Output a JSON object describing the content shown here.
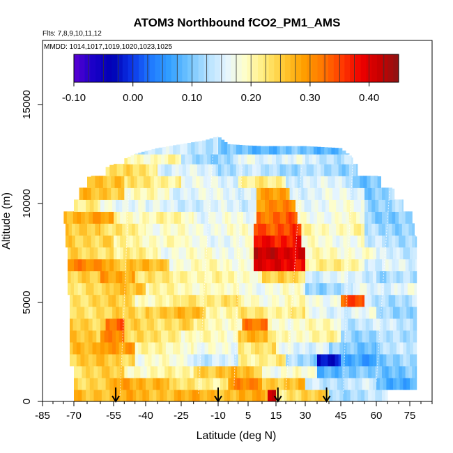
{
  "chart_data": {
    "type": "heatmap",
    "title": "ATOM3 Northbound fCO2_PM1_AMS",
    "flights_label": "Flts: 7,8,9,10,11,12",
    "dates_label": "MMDD: 1014,1017,1019,1020,1023,1025",
    "xlabel": "Latitude (deg N)",
    "ylabel": "Altitude (m)",
    "xlim": [
      -85,
      85
    ],
    "ylim": [
      0,
      17500
    ],
    "x_ticks": [
      -85,
      -70,
      -55,
      -40,
      -25,
      -10,
      5,
      15,
      30,
      45,
      60,
      75
    ],
    "x_tick_labels": [
      "-85",
      "-70",
      "-55",
      "-40",
      "-25",
      "-10",
      "5",
      "15",
      "30",
      "45",
      "60",
      "75"
    ],
    "y_ticks": [
      0,
      5000,
      10000,
      15000
    ],
    "y_tick_labels": [
      "0",
      "5000",
      "10000",
      "15000"
    ],
    "colorbar": {
      "range": [
        -0.1,
        0.45
      ],
      "ticks": [
        -0.1,
        0.0,
        0.1,
        0.2,
        0.3,
        0.4
      ],
      "tick_labels": [
        "-0.10",
        "0.00",
        "0.10",
        "0.20",
        "0.30",
        "0.40"
      ],
      "colors": [
        "#5a00d2",
        "#1a00c8",
        "#0000b4",
        "#0a32e6",
        "#1e78ff",
        "#32a0ff",
        "#6ec3ff",
        "#b4e1ff",
        "#e6f5ff",
        "#ffffc8",
        "#ffeb78",
        "#ffc832",
        "#ffa000",
        "#ff7800",
        "#ff3c00",
        "#f00000",
        "#c80000",
        "#8c1414"
      ]
    },
    "arrow_latitudes": [
      -54,
      -10,
      16,
      39
    ],
    "field": {
      "description_units": "fCO2 fraction",
      "top_profile": [
        [
          -72,
          10300
        ],
        [
          -65,
          11300
        ],
        [
          -55,
          12000
        ],
        [
          -45,
          12500
        ],
        [
          -35,
          12800
        ],
        [
          -25,
          13000
        ],
        [
          -15,
          13200
        ],
        [
          -10,
          13400
        ],
        [
          -5,
          13000
        ],
        [
          10,
          12900
        ],
        [
          30,
          12900
        ],
        [
          45,
          12800
        ],
        [
          50,
          12300
        ],
        [
          60,
          11500
        ],
        [
          70,
          10500
        ],
        [
          76,
          9500
        ],
        [
          79,
          7500
        ],
        [
          80,
          0
        ]
      ],
      "left_profile": [
        [
          -75,
          9500
        ],
        [
          -74,
          8000
        ],
        [
          -73,
          5000
        ],
        [
          -72,
          2000
        ],
        [
          -71,
          600
        ],
        [
          -70,
          0
        ]
      ],
      "layers": [
        {
          "alt": [
            0,
            600
          ],
          "segments": [
            [
              -70,
              12,
              0.27
            ],
            [
              12,
              15,
              0.42
            ],
            [
              15,
              19,
              0.22
            ],
            [
              19,
              40,
              0.24
            ],
            [
              40,
              65,
              0.13
            ]
          ]
        },
        {
          "alt": [
            600,
            1200
          ],
          "segments": [
            [
              -70,
              -55,
              0.25
            ],
            [
              -55,
              -30,
              0.28
            ],
            [
              -30,
              -5,
              0.22
            ],
            [
              -5,
              10,
              0.3
            ],
            [
              10,
              30,
              0.26
            ],
            [
              30,
              60,
              0.14
            ],
            [
              60,
              78,
              0.08
            ]
          ]
        },
        {
          "alt": [
            1200,
            1800
          ],
          "segments": [
            [
              -70,
              -50,
              0.24
            ],
            [
              -50,
              -20,
              0.2
            ],
            [
              -20,
              10,
              0.26
            ],
            [
              10,
              35,
              0.18
            ],
            [
              35,
              55,
              0.09
            ],
            [
              55,
              78,
              0.1
            ]
          ]
        },
        {
          "alt": [
            1800,
            2400
          ],
          "segments": [
            [
              -72,
              -45,
              0.25
            ],
            [
              -45,
              -20,
              0.18
            ],
            [
              -20,
              0,
              0.14
            ],
            [
              0,
              20,
              0.22
            ],
            [
              20,
              35,
              0.12
            ],
            [
              35,
              45,
              -0.02
            ],
            [
              45,
              60,
              0.06
            ],
            [
              60,
              78,
              0.11
            ]
          ]
        },
        {
          "alt": [
            2400,
            3000
          ],
          "segments": [
            [
              -72,
              -60,
              0.26
            ],
            [
              -60,
              -45,
              0.3
            ],
            [
              -45,
              -20,
              0.2
            ],
            [
              -20,
              0,
              0.17
            ],
            [
              0,
              15,
              0.23
            ],
            [
              15,
              40,
              0.16
            ],
            [
              40,
              60,
              0.1
            ],
            [
              60,
              78,
              0.13
            ]
          ]
        },
        {
          "alt": [
            3000,
            3600
          ],
          "segments": [
            [
              -72,
              -60,
              0.25
            ],
            [
              -60,
              -50,
              0.32
            ],
            [
              -50,
              -25,
              0.23
            ],
            [
              -25,
              0,
              0.19
            ],
            [
              0,
              12,
              0.27
            ],
            [
              12,
              45,
              0.2
            ],
            [
              45,
              78,
              0.12
            ]
          ]
        },
        {
          "alt": [
            3600,
            4200
          ],
          "segments": [
            [
              -72,
              -58,
              0.25
            ],
            [
              -58,
              -50,
              0.33
            ],
            [
              -50,
              -20,
              0.24
            ],
            [
              -20,
              2,
              0.2
            ],
            [
              2,
              12,
              0.31
            ],
            [
              12,
              45,
              0.19
            ],
            [
              45,
              78,
              0.14
            ]
          ]
        },
        {
          "alt": [
            4200,
            4800
          ],
          "segments": [
            [
              -72,
              -40,
              0.24
            ],
            [
              -40,
              -15,
              0.26
            ],
            [
              -15,
              0,
              0.21
            ],
            [
              0,
              30,
              0.22
            ],
            [
              30,
              60,
              0.16
            ],
            [
              60,
              78,
              0.12
            ]
          ]
        },
        {
          "alt": [
            4800,
            5400
          ],
          "segments": [
            [
              -72,
              -45,
              0.24
            ],
            [
              -45,
              -25,
              0.2
            ],
            [
              -25,
              0,
              0.23
            ],
            [
              0,
              30,
              0.19
            ],
            [
              30,
              45,
              0.18
            ],
            [
              45,
              55,
              0.34
            ],
            [
              55,
              78,
              0.13
            ]
          ]
        },
        {
          "alt": [
            5400,
            6000
          ],
          "segments": [
            [
              -73,
              -55,
              0.23
            ],
            [
              -55,
              -40,
              0.27
            ],
            [
              -40,
              -10,
              0.2
            ],
            [
              -10,
              30,
              0.18
            ],
            [
              30,
              50,
              0.12
            ],
            [
              50,
              78,
              0.16
            ]
          ]
        },
        {
          "alt": [
            6000,
            6600
          ],
          "segments": [
            [
              -73,
              -60,
              0.24
            ],
            [
              -60,
              -45,
              0.29
            ],
            [
              -45,
              -20,
              0.22
            ],
            [
              -20,
              10,
              0.2
            ],
            [
              10,
              30,
              0.24
            ],
            [
              30,
              60,
              0.15
            ],
            [
              60,
              78,
              0.12
            ]
          ]
        },
        {
          "alt": [
            6600,
            7200
          ],
          "segments": [
            [
              -73,
              -55,
              0.3
            ],
            [
              -55,
              -30,
              0.26
            ],
            [
              -30,
              7,
              0.19
            ],
            [
              7,
              30,
              0.39
            ],
            [
              30,
              55,
              0.21
            ],
            [
              55,
              78,
              0.15
            ]
          ]
        },
        {
          "alt": [
            7200,
            7800
          ],
          "segments": [
            [
              -73,
              -55,
              0.24
            ],
            [
              -55,
              -35,
              0.21
            ],
            [
              -35,
              7,
              0.18
            ],
            [
              7,
              30,
              0.41
            ],
            [
              30,
              60,
              0.19
            ],
            [
              60,
              78,
              0.14
            ]
          ]
        },
        {
          "alt": [
            7800,
            8400
          ],
          "segments": [
            [
              -74,
              -55,
              0.25
            ],
            [
              -55,
              -25,
              0.2
            ],
            [
              -25,
              7,
              0.17
            ],
            [
              7,
              28,
              0.38
            ],
            [
              28,
              55,
              0.18
            ],
            [
              55,
              78,
              0.13
            ]
          ]
        },
        {
          "alt": [
            8400,
            9000
          ],
          "segments": [
            [
              -74,
              -60,
              0.26
            ],
            [
              -60,
              -40,
              0.22
            ],
            [
              -40,
              7,
              0.18
            ],
            [
              7,
              28,
              0.35
            ],
            [
              28,
              55,
              0.2
            ],
            [
              55,
              77,
              0.12
            ]
          ]
        },
        {
          "alt": [
            9000,
            9600
          ],
          "segments": [
            [
              -75,
              -55,
              0.28
            ],
            [
              -55,
              -20,
              0.2
            ],
            [
              -20,
              8,
              0.17
            ],
            [
              8,
              26,
              0.33
            ],
            [
              26,
              55,
              0.18
            ],
            [
              55,
              76,
              0.11
            ]
          ]
        },
        {
          "alt": [
            9600,
            10200
          ],
          "segments": [
            [
              -74,
              -60,
              0.21
            ],
            [
              -60,
              -40,
              0.17
            ],
            [
              -40,
              8,
              0.15
            ],
            [
              8,
              25,
              0.3
            ],
            [
              25,
              55,
              0.17
            ],
            [
              55,
              72,
              0.12
            ]
          ]
        },
        {
          "alt": [
            10200,
            10800
          ],
          "segments": [
            [
              -68,
              -50,
              0.26
            ],
            [
              -50,
              -30,
              0.19
            ],
            [
              -30,
              8,
              0.16
            ],
            [
              8,
              22,
              0.28
            ],
            [
              22,
              55,
              0.16
            ],
            [
              55,
              68,
              0.11
            ]
          ]
        },
        {
          "alt": [
            10800,
            11400
          ],
          "segments": [
            [
              -65,
              -50,
              0.27
            ],
            [
              -50,
              -25,
              0.22
            ],
            [
              -25,
              0,
              0.16
            ],
            [
              0,
              20,
              0.21
            ],
            [
              20,
              50,
              0.15
            ],
            [
              50,
              62,
              0.1
            ]
          ]
        },
        {
          "alt": [
            11400,
            12000
          ],
          "segments": [
            [
              -58,
              -35,
              0.23
            ],
            [
              -35,
              -10,
              0.15
            ],
            [
              -10,
              20,
              0.13
            ],
            [
              20,
              52,
              0.12
            ]
          ]
        },
        {
          "alt": [
            12000,
            12500
          ],
          "segments": [
            [
              -50,
              -25,
              0.2
            ],
            [
              -25,
              0,
              0.12
            ],
            [
              0,
              30,
              0.16
            ],
            [
              30,
              50,
              0.14
            ]
          ]
        },
        {
          "alt": [
            12500,
            13400
          ],
          "segments": [
            [
              -45,
              -10,
              0.14
            ],
            [
              -10,
              50,
              0.09
            ]
          ]
        }
      ]
    }
  }
}
